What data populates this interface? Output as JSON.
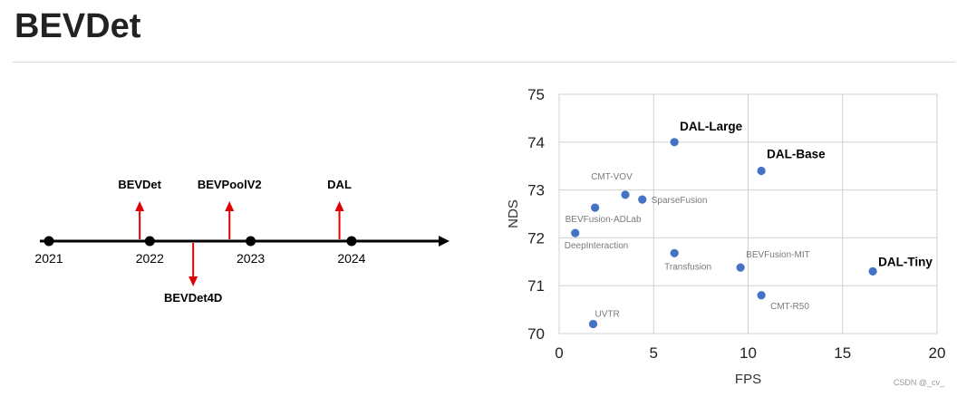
{
  "header": {
    "title": "BEVDet"
  },
  "timeline": {
    "years": [
      "2021",
      "2022",
      "2023",
      "2024"
    ],
    "events": [
      {
        "label": "BEVDet",
        "at": 2021.9,
        "direction": "up"
      },
      {
        "label": "BEVDet4D",
        "at": 2022.43,
        "direction": "down"
      },
      {
        "label": "BEVPoolV2",
        "at": 2022.79,
        "direction": "up"
      },
      {
        "label": "DAL",
        "at": 2023.88,
        "direction": "up"
      }
    ],
    "colors": {
      "line": "#000000",
      "arrow": "#e00000"
    }
  },
  "chart_data": {
    "type": "scatter",
    "title": "",
    "xlabel": "FPS",
    "ylabel": "NDS",
    "xlim": [
      0,
      20
    ],
    "ylim": [
      70,
      75
    ],
    "xticks": [
      "0",
      "5",
      "10",
      "15",
      "20"
    ],
    "yticks": [
      "70",
      "71",
      "72",
      "73",
      "74",
      "75"
    ],
    "grid": true,
    "marker_color": "#4472c4",
    "points": [
      {
        "label": "DAL-Large",
        "x": 6.1,
        "y": 74.0,
        "emphasis": true
      },
      {
        "label": "DAL-Base",
        "x": 10.7,
        "y": 73.4,
        "emphasis": true
      },
      {
        "label": "DAL-Tiny",
        "x": 16.6,
        "y": 71.3,
        "emphasis": true
      },
      {
        "label": "CMT-VOV",
        "x": 3.5,
        "y": 72.9,
        "emphasis": false
      },
      {
        "label": "SparseFusion",
        "x": 4.4,
        "y": 72.8,
        "emphasis": false
      },
      {
        "label": "BEVFusion-ADLab",
        "x": 1.9,
        "y": 72.63,
        "emphasis": false
      },
      {
        "label": "DeepInteraction",
        "x": 0.85,
        "y": 72.1,
        "emphasis": false
      },
      {
        "label": "Transfusion",
        "x": 6.1,
        "y": 71.68,
        "emphasis": false
      },
      {
        "label": "BEVFusion-MIT",
        "x": 9.6,
        "y": 71.38,
        "emphasis": false
      },
      {
        "label": "CMT-R50",
        "x": 10.7,
        "y": 70.8,
        "emphasis": false
      },
      {
        "label": "UVTR",
        "x": 1.8,
        "y": 70.2,
        "emphasis": false
      }
    ]
  },
  "watermark": "CSDN @_cv_"
}
